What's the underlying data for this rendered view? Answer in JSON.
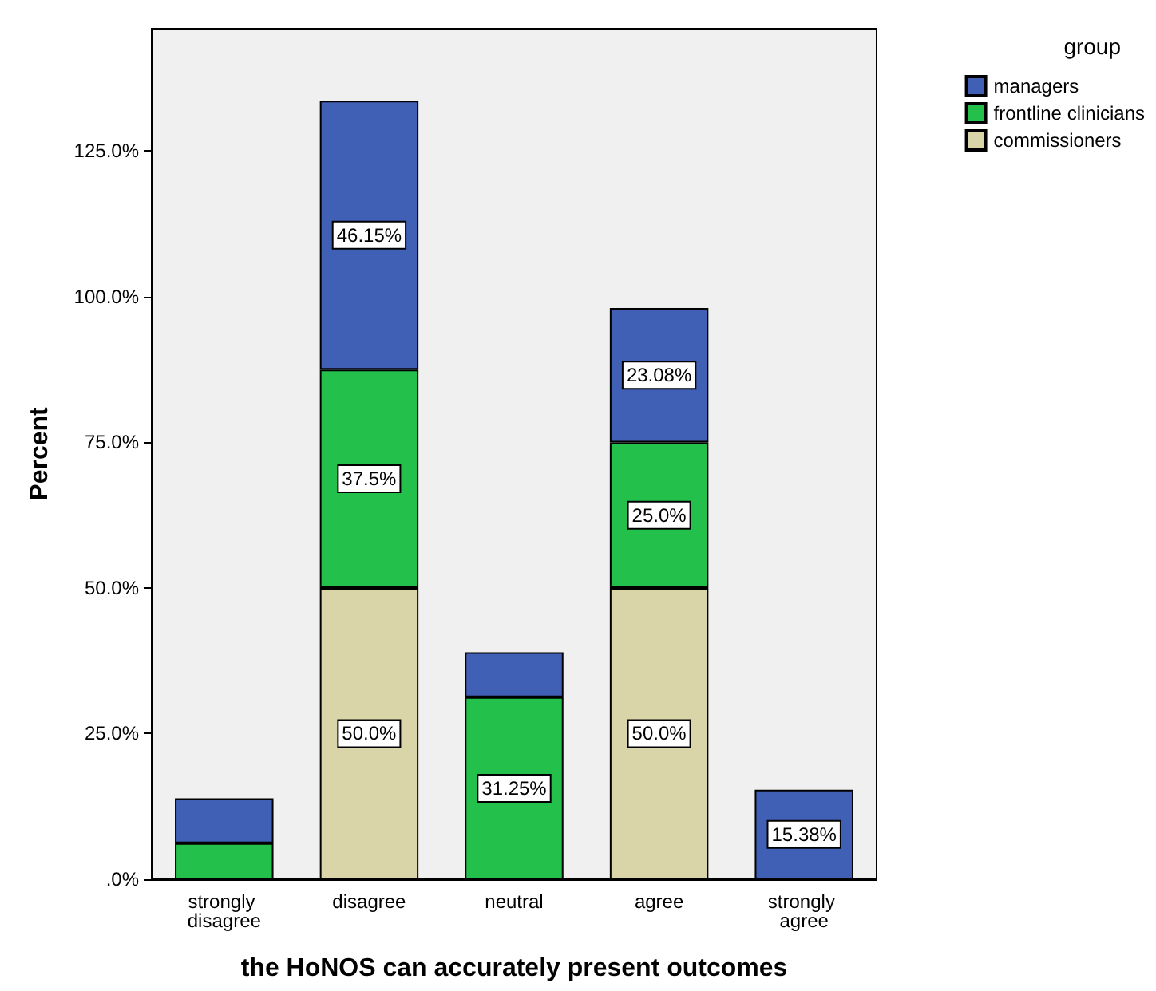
{
  "chart_data": {
    "type": "bar",
    "stacked": true,
    "xlabel": "the HoNOS can accurately present outcomes",
    "ylabel": "Percent",
    "legend_title": "group",
    "legend": "top right",
    "grid": false,
    "categories": [
      "strongly disagree",
      "disagree",
      "neutral",
      "agree",
      "strongly agree"
    ],
    "series": [
      {
        "name": "commissioners",
        "color": "#d9d5a8",
        "values": [
          null,
          50.0,
          null,
          50.0,
          null
        ],
        "value_labels": [
          null,
          "50.0%",
          null,
          "50.0%",
          null
        ]
      },
      {
        "name": "frontline clinicians",
        "color": "#23c04b",
        "values": [
          6.2,
          37.5,
          31.25,
          25.0,
          null
        ],
        "value_labels": [
          null,
          "37.5%",
          "31.25%",
          "25.0%",
          null
        ]
      },
      {
        "name": "managers",
        "color": "#4060b5",
        "values": [
          7.7,
          46.15,
          7.7,
          23.08,
          15.38
        ],
        "value_labels": [
          null,
          "46.15%",
          null,
          "23.08%",
          "15.38%"
        ]
      }
    ],
    "ylim": [
      0,
      146
    ],
    "yticks": [
      {
        "value": 0,
        "label": ".0%"
      },
      {
        "value": 25,
        "label": "25.0%"
      },
      {
        "value": 50,
        "label": "50.0%"
      },
      {
        "value": 75,
        "label": "75.0%"
      },
      {
        "value": 100,
        "label": "100.0%"
      },
      {
        "value": 125,
        "label": "125.0%"
      }
    ]
  }
}
